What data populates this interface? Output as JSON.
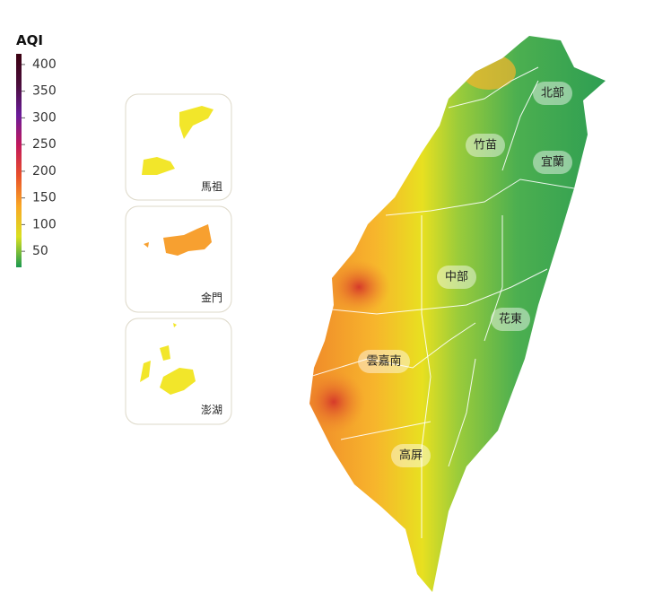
{
  "legend": {
    "title": "AQI",
    "ticks": [
      50,
      100,
      150,
      200,
      250,
      300,
      350,
      400
    ],
    "range": [
      20,
      420
    ],
    "colors": [
      "#1a9850",
      "#d9e021",
      "#f9a825",
      "#e8502a",
      "#c2185b",
      "#6a1b9a",
      "#4a0d3a",
      "#3b0010"
    ]
  },
  "islands": [
    "馬祖",
    "金門",
    "澎湖"
  ],
  "regions": [
    "北部",
    "竹苗",
    "宜蘭",
    "中部",
    "花東",
    "雲嘉南",
    "高屏"
  ]
}
